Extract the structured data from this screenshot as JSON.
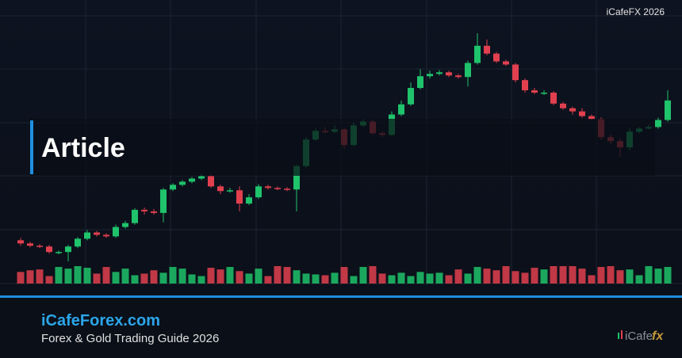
{
  "watermark": "iCafeFX 2026",
  "title": "Article",
  "footer": {
    "site": "iCafeForex.com",
    "tagline": "Forex & Gold Trading Guide 2026"
  },
  "logo": {
    "prefix": "iCafe",
    "suffix": "fx"
  },
  "chart_data": {
    "type": "candlestick",
    "up_color": "#1fc36b",
    "down_color": "#e2404f",
    "open": [
      93,
      89,
      86,
      85,
      78,
      78,
      85,
      95,
      103,
      100,
      98,
      110,
      115,
      132,
      130,
      128,
      158,
      164,
      168,
      172,
      175,
      162,
      156,
      157,
      140,
      148,
      162,
      160,
      159,
      158,
      188,
      222,
      233,
      232,
      235,
      215,
      240,
      245,
      230,
      228,
      254,
      267,
      288,
      303,
      306,
      308,
      304,
      302,
      320,
      342,
      332,
      322,
      318,
      298,
      285,
      282,
      282,
      268,
      262,
      258,
      252,
      248,
      225,
      220,
      212,
      232,
      236,
      238,
      247
    ],
    "high": [
      96,
      91,
      88,
      87,
      80,
      87,
      97,
      106,
      105,
      102,
      113,
      118,
      134,
      135,
      133,
      160,
      166,
      170,
      174,
      178,
      177,
      164,
      160,
      162,
      152,
      165,
      164,
      162,
      161,
      190,
      225,
      236,
      238,
      240,
      237,
      244,
      248,
      247,
      233,
      258,
      272,
      295,
      312,
      310,
      311,
      310,
      306,
      323,
      358,
      350,
      334,
      324,
      320,
      300,
      288,
      285,
      284,
      270,
      264,
      262,
      254,
      250,
      228,
      223,
      236,
      238,
      241,
      250,
      285
    ],
    "low": [
      86,
      84,
      83,
      76,
      75,
      66,
      83,
      93,
      98,
      96,
      96,
      108,
      113,
      126,
      126,
      116,
      156,
      162,
      166,
      170,
      160,
      152,
      154,
      130,
      138,
      146,
      158,
      157,
      156,
      130,
      186,
      220,
      230,
      230,
      210,
      213,
      238,
      228,
      225,
      226,
      252,
      265,
      286,
      300,
      304,
      302,
      300,
      290,
      318,
      330,
      320,
      316,
      295,
      282,
      280,
      279,
      266,
      260,
      254,
      250,
      246,
      222,
      216,
      200,
      208,
      230,
      235,
      236,
      245
    ],
    "close": [
      89,
      86,
      85,
      78,
      78,
      85,
      95,
      103,
      100,
      98,
      110,
      115,
      132,
      130,
      128,
      158,
      164,
      168,
      172,
      175,
      162,
      156,
      157,
      140,
      148,
      162,
      160,
      159,
      158,
      188,
      222,
      233,
      232,
      235,
      215,
      240,
      245,
      230,
      228,
      254,
      267,
      288,
      303,
      306,
      308,
      304,
      302,
      320,
      342,
      332,
      322,
      318,
      298,
      285,
      282,
      282,
      268,
      262,
      258,
      252,
      248,
      225,
      220,
      212,
      232,
      236,
      238,
      247,
      272
    ],
    "volume": [
      14,
      16,
      17,
      9,
      20,
      18,
      21,
      19,
      12,
      20,
      14,
      18,
      10,
      12,
      16,
      13,
      20,
      18,
      11,
      9,
      19,
      17,
      20,
      15,
      12,
      18,
      9,
      21,
      20,
      16,
      12,
      11,
      10,
      13,
      20,
      9,
      20,
      21,
      12,
      10,
      13,
      9,
      14,
      12,
      13,
      10,
      17,
      12,
      20,
      18,
      16,
      21,
      15,
      13,
      19,
      17,
      21,
      21,
      21,
      18,
      10,
      20,
      21,
      16,
      17,
      10,
      21,
      18,
      20
    ]
  }
}
